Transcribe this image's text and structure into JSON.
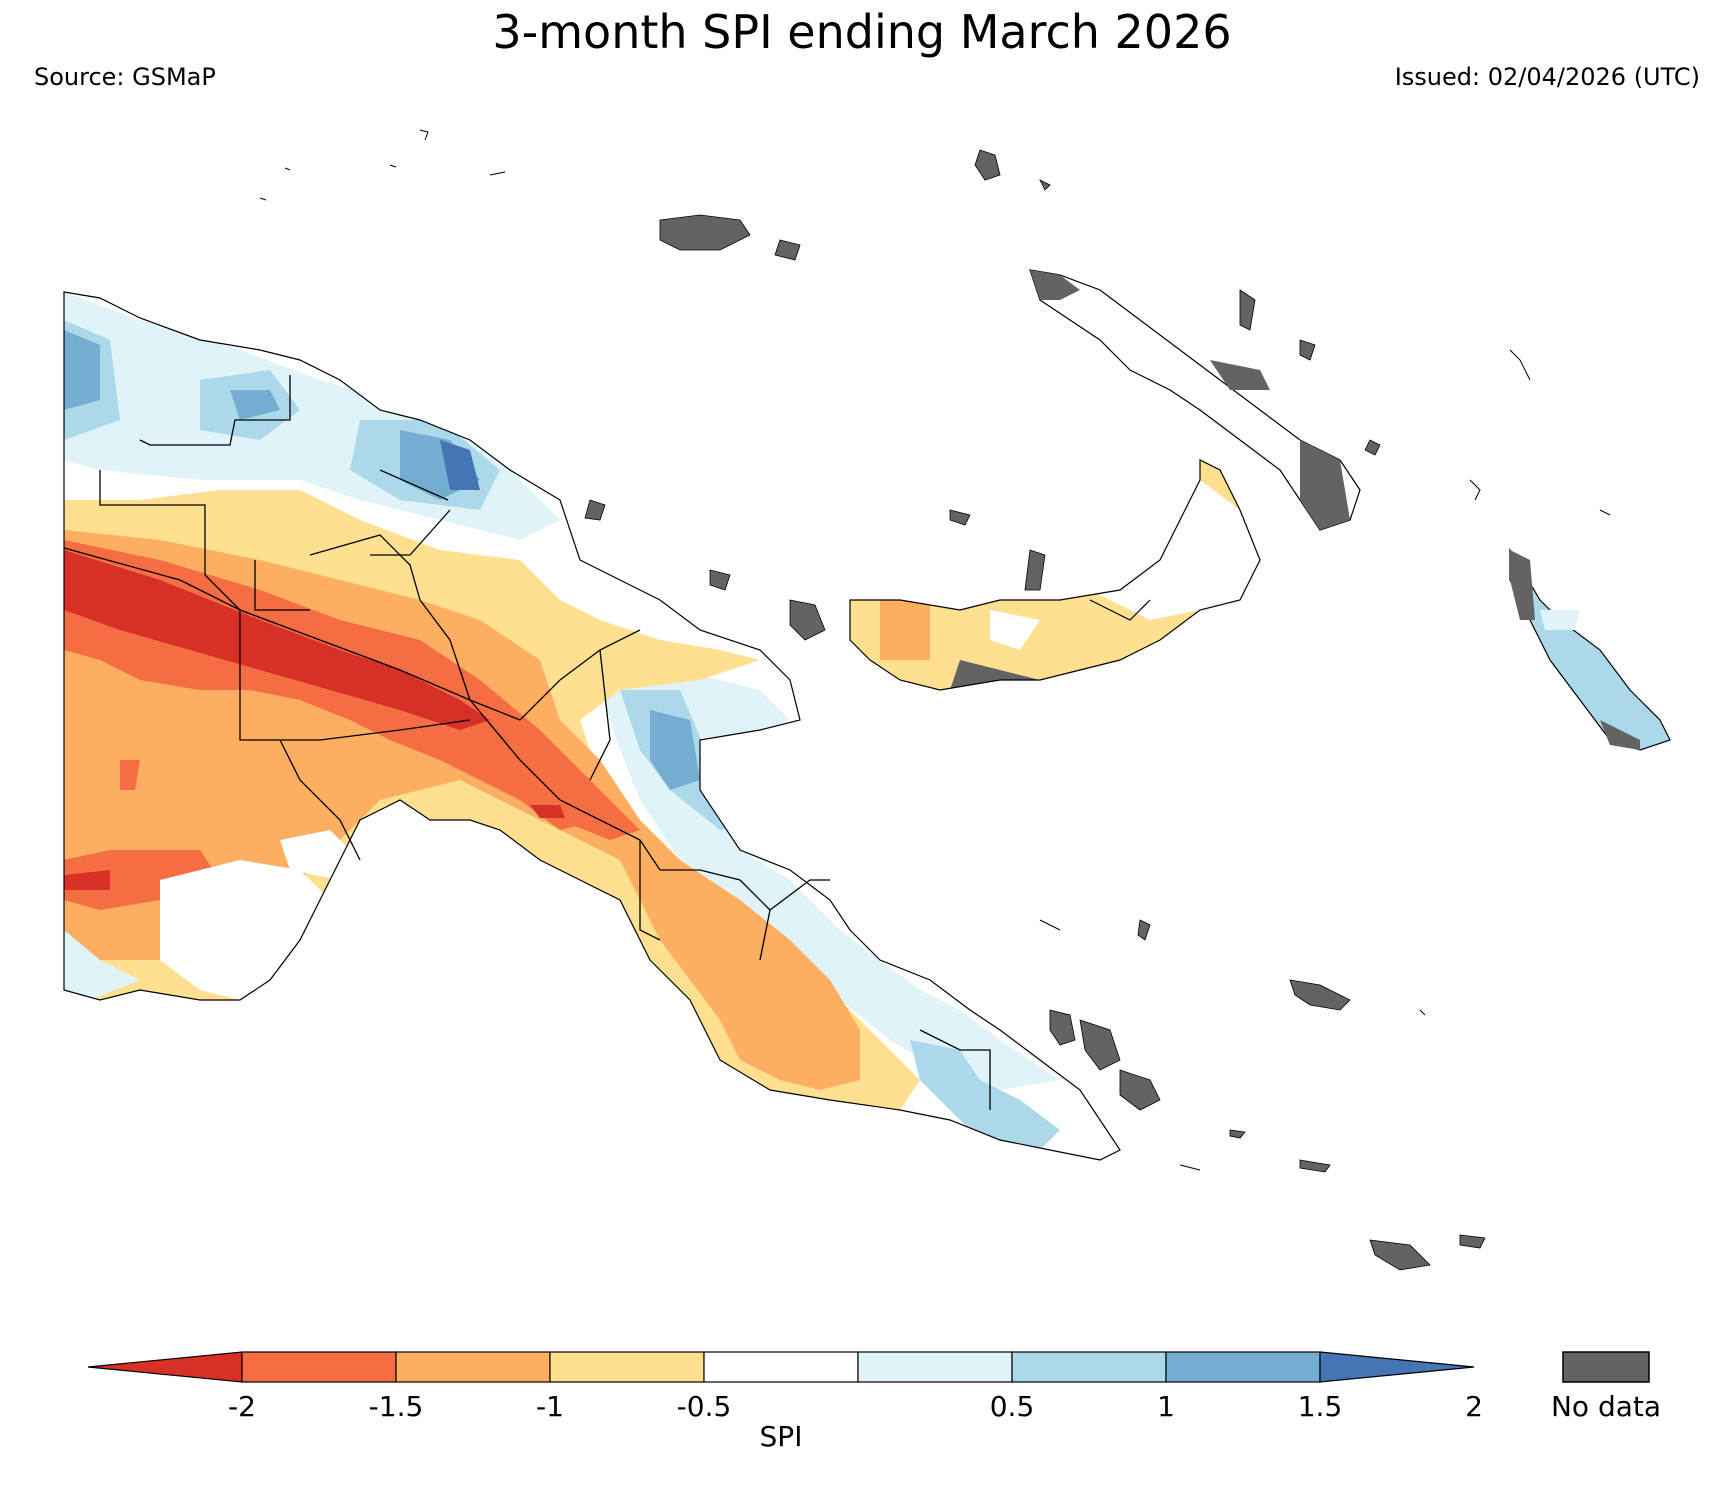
{
  "title": "3-month SPI ending March 2026",
  "source": "Source: GSMaP",
  "issued": "Issued: 02/04/2026 (UTC)",
  "colorbar": {
    "label": "SPI",
    "ticks": [
      "-2",
      "-1.5",
      "-1",
      "-0.5",
      "0.5",
      "1",
      "1.5",
      "2"
    ],
    "colors": [
      "#d73027",
      "#f46d43",
      "#fdae61",
      "#fee090",
      "#ffffff",
      "#e0f3f8",
      "#abd9e9",
      "#74add1",
      "#4575b4"
    ],
    "nodata_label": "No data",
    "nodata_color": "#636363"
  },
  "spi_classes": [
    {
      "range": "< -2",
      "color": "#d73027"
    },
    {
      "range": "-2 to -1.5",
      "color": "#f46d43"
    },
    {
      "range": "-1.5 to -1",
      "color": "#fdae61"
    },
    {
      "range": "-1 to -0.5",
      "color": "#fee090"
    },
    {
      "range": "-0.5 to 0.5",
      "color": "#ffffff"
    },
    {
      "range": "0.5 to 1",
      "color": "#e0f3f8"
    },
    {
      "range": "1 to 1.5",
      "color": "#abd9e9"
    },
    {
      "range": "1.5 to 2",
      "color": "#74add1"
    },
    {
      "range": "> 2",
      "color": "#4575b4"
    }
  ]
}
